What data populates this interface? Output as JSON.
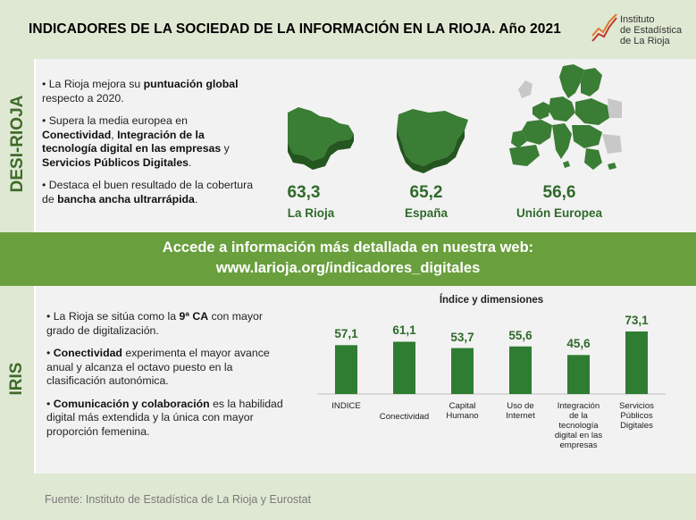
{
  "header": {
    "title": "INDICADORES DE LA SOCIEDAD DE LA INFORMACIÓN EN LA RIOJA. Año 2021",
    "logo_lines": [
      "Instituto",
      "de Estadística",
      "de La Rioja"
    ]
  },
  "desi": {
    "section_label": "DESI-RIOJA",
    "bullets": [
      {
        "segments": [
          {
            "t": "• La Rioja mejora su ",
            "b": false
          },
          {
            "t": "puntuación global",
            "b": true
          },
          {
            "t": " respecto a 2020.",
            "b": false
          }
        ]
      },
      {
        "segments": [
          {
            "t": "• Supera la media europea en ",
            "b": false
          },
          {
            "t": "Conectividad",
            "b": true
          },
          {
            "t": ", ",
            "b": false
          },
          {
            "t": "Integración de la tecnología digital en las empresas",
            "b": true
          },
          {
            "t": " y ",
            "b": false
          },
          {
            "t": "Servicios Públicos Digitales",
            "b": true
          },
          {
            "t": ".",
            "b": false
          }
        ]
      },
      {
        "segments": [
          {
            "t": "• Destaca el buen resultado de la cobertura de ",
            "b": false
          },
          {
            "t": "bancha ancha ultrarrápida",
            "b": true
          },
          {
            "t": ".",
            "b": false
          }
        ]
      }
    ],
    "stats": [
      {
        "value": "63,3",
        "label": "La Rioja"
      },
      {
        "value": "65,2",
        "label": "España"
      },
      {
        "value": "56,6",
        "label": "Unión Europea"
      }
    ]
  },
  "banner": {
    "line1": "Accede a información más detallada en nuestra web:",
    "line2": "www.larioja.org/indicadores_digitales"
  },
  "iris": {
    "section_label": "IRIS",
    "bullets": [
      {
        "segments": [
          {
            "t": "• La Rioja se sitúa como la ",
            "b": false
          },
          {
            "t": "9ª CA",
            "b": true
          },
          {
            "t": " con mayor grado de digitalización.",
            "b": false
          }
        ]
      },
      {
        "segments": [
          {
            "t": "• ",
            "b": false
          },
          {
            "t": "Conectividad",
            "b": true
          },
          {
            "t": " experimenta el mayor avance anual y alcanza el octavo puesto en la clasificación autonómica.",
            "b": false
          }
        ]
      },
      {
        "segments": [
          {
            "t": "• ",
            "b": false
          },
          {
            "t": "Comunicación y colaboración",
            "b": true
          },
          {
            "t": " es la habilidad digital más extendida y la única con mayor proporción femenina.",
            "b": false
          }
        ]
      }
    ]
  },
  "chart_data": {
    "type": "bar",
    "title": "Índice y dimensiones",
    "categories": [
      "INDICE",
      "Conectividad",
      "Capital Humano",
      "Uso de Internet",
      "Integración de la tecnología digital en las empresas",
      "Servicios Públicos Digitales"
    ],
    "category_lines": [
      [
        "INDICE"
      ],
      [
        "Conectividad"
      ],
      [
        "Capital",
        "Humano"
      ],
      [
        "Uso de",
        "Internet"
      ],
      [
        "Integración",
        "de la",
        "tecnología",
        "digital en las",
        "empresas"
      ],
      [
        "Servicios",
        "Públicos",
        "Digitales"
      ]
    ],
    "values": [
      57.1,
      61.1,
      53.7,
      55.6,
      45.6,
      73.1
    ],
    "value_labels": [
      "57,1",
      "61,1",
      "53,7",
      "55,6",
      "45,6",
      "73,1"
    ],
    "bar_color": "#2e7d32",
    "xlabel": "",
    "ylabel": ""
  },
  "footer": {
    "text": "Fuente:  Instituto de Estadística de La Rioja y Eurostat"
  },
  "colors": {
    "accent_dark_green": "#2f6a2a",
    "banner_green": "#6a9f3e",
    "light_green_band": "#dfe8d3",
    "map_green": "#3a7d35",
    "logo_orange": "#e07a2e",
    "logo_red": "#c0392b"
  }
}
